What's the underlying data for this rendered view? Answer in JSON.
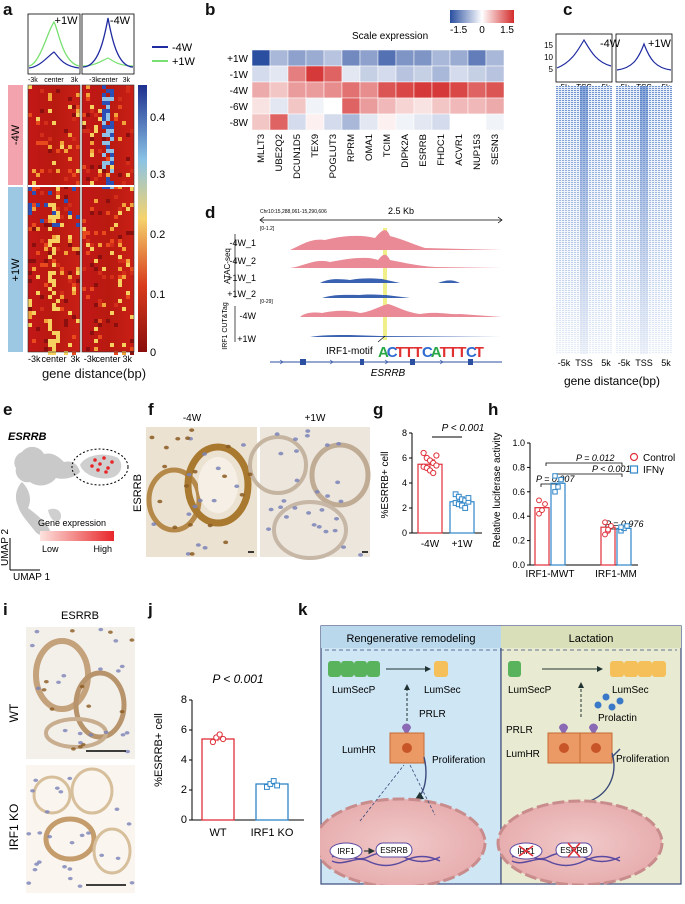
{
  "panels": {
    "a": {
      "label": "a",
      "top_titles": [
        "+1W",
        "-4W"
      ],
      "legend": [
        {
          "name": "-4W",
          "color": "#1f2aa0"
        },
        {
          "name": "+1W",
          "color": "#78e070"
        }
      ],
      "row_labels": [
        "-4W",
        "+1W"
      ],
      "colorbar_ticks": [
        "0.4",
        "0.3",
        "0.2",
        "0.1",
        "0"
      ],
      "x_ticks": [
        "-3k",
        "center",
        "3k"
      ],
      "xlabel": "gene distance(bp)"
    },
    "b": {
      "label": "b",
      "title": "Scale expression",
      "scale_ticks": [
        "-1.5",
        "0",
        "1.5"
      ],
      "rows": [
        "+1W",
        "-1W",
        "-4W",
        "-6W",
        "-8W"
      ],
      "genes": [
        "MLLT3",
        "UBE2Q2",
        "DCUN1D5",
        "TEX9",
        "POGLUT3",
        "RPRM",
        "OMA1",
        "TCIM",
        "DIPK2A",
        "ESRRB",
        "FHDC1",
        "ACVR1",
        "NUP153",
        "SESN3"
      ]
    },
    "c": {
      "label": "c",
      "titles": [
        "-4W",
        "+1W"
      ],
      "y_ticks": [
        "15",
        "10",
        "5"
      ],
      "x_ticks": [
        "-5k",
        "TSS",
        "5k"
      ],
      "xlabel": "gene distance(bp)"
    },
    "d": {
      "label": "d",
      "coords": "Chr10:15,288,061-15,290,606",
      "scale": "2.5 Kb",
      "range1": "[0-1.2]",
      "range2": "[0-29]",
      "group1": "ATAC-seq",
      "group2": "IRF1 CUT&Tag",
      "tracks": [
        "-4W_1",
        "-4W_2",
        "+1W_1",
        "+1W_2",
        "-4W",
        "+1W"
      ],
      "motif_label": "IRF1-motif",
      "motif": "ACTTTCATTTCT",
      "gene": "ESRRB"
    },
    "e": {
      "label": "e",
      "gene": "ESRRB",
      "legend_title": "Gene expression",
      "low": "Low",
      "high": "High",
      "axis_y": "UMAP 2",
      "axis_x": "UMAP 1"
    },
    "f": {
      "label": "f",
      "titles": [
        "-4W",
        "+1W"
      ],
      "side": "ESRRB"
    },
    "g": {
      "label": "g",
      "pvalue": "P < 0.001",
      "ylabel": "%ESRRB+ cell",
      "y_ticks": [
        "8",
        "6",
        "4",
        "2",
        "0"
      ],
      "categories": [
        "-4W",
        "+1W"
      ]
    },
    "h": {
      "label": "h",
      "ylabel": "Relative luciferase activity",
      "y_ticks": [
        "1.0",
        "0.8",
        "0.6",
        "0.4",
        "0.2",
        "0.0"
      ],
      "pvals": [
        "P = 0.012",
        "P < 0.001",
        "P = 0.007",
        "P = 0.976"
      ],
      "legend": [
        "Control",
        "IFNγ"
      ],
      "categories": [
        "IRF1-MWT",
        "IRF1-MM"
      ]
    },
    "i": {
      "label": "i",
      "title": "ESRRB",
      "rows": [
        "WT",
        "IRF1 KO"
      ]
    },
    "j": {
      "label": "j",
      "pvalue": "P < 0.001",
      "ylabel": "%ESRRB+ cell",
      "y_ticks": [
        "8",
        "6",
        "4",
        "2",
        "0"
      ],
      "categories": [
        "WT",
        "IRF1 KO"
      ]
    },
    "k": {
      "label": "k",
      "left_title": "Rengenerative remodeling",
      "right_title": "Lactation",
      "left_labels": {
        "lumsecp": "LumSecP",
        "lumsec": "LumSec",
        "prlr": "PRLR",
        "lumhr": "LumHR",
        "prolif": "Proliferation",
        "irf1": "IRF1",
        "esrrb": "ESRRB"
      },
      "right_labels": {
        "lumsecp": "LumSecP",
        "lumsec": "LumSec",
        "prlr": "PRLR",
        "lumhr": "LumHR",
        "prolif": "Proliferation",
        "prolactin": "Prolactin",
        "irf1": "IRF1",
        "esrrb": "ESRRB"
      }
    }
  },
  "chart_data": [
    {
      "type": "bar",
      "panel": "g",
      "categories": [
        "-4W",
        "+1W"
      ],
      "values": [
        5.5,
        2.5
      ],
      "errors": [
        0.35,
        0.2
      ],
      "points": [
        [
          6.4,
          6.0,
          5.8,
          5.6,
          5.4,
          5.3,
          5.2,
          5.0,
          4.8,
          6.2
        ],
        [
          3.1,
          2.9,
          2.7,
          2.6,
          2.5,
          2.4,
          2.3,
          2.2,
          2.0,
          2.8
        ]
      ],
      "colors": [
        "#e0303a",
        "#2f86c8"
      ],
      "ylabel": "%ESRRB+ cell",
      "ylim": [
        0,
        8
      ]
    },
    {
      "type": "bar",
      "panel": "h",
      "categories": [
        "IRF1-MWT",
        "IRF1-MM"
      ],
      "series": [
        {
          "name": "Control",
          "values": [
            0.47,
            0.31
          ],
          "points": [
            [
              0.42,
              0.45,
              0.5,
              0.53
            ],
            [
              0.25,
              0.28,
              0.32,
              0.35,
              0.29
            ]
          ],
          "color": "#e0303a"
        },
        {
          "name": "IFNγ",
          "values": [
            0.67,
            0.3
          ],
          "points": [
            [
              0.6,
              0.64,
              0.7,
              0.73
            ],
            [
              0.28,
              0.3,
              0.32,
              0.31
            ]
          ],
          "color": "#2f86c8"
        }
      ],
      "ylabel": "Relative luciferase activity",
      "ylim": [
        0,
        1.0
      ]
    },
    {
      "type": "bar",
      "panel": "j",
      "categories": [
        "WT",
        "IRF1 KO"
      ],
      "values": [
        5.4,
        2.4
      ],
      "errors": [
        0.15,
        0.15
      ],
      "points": [
        [
          5.2,
          5.5,
          5.7,
          5.4
        ],
        [
          2.2,
          2.4,
          2.6,
          2.3
        ]
      ],
      "colors": [
        "#e0303a",
        "#2f86c8"
      ],
      "ylabel": "%ESRRB+ cell",
      "ylim": [
        0,
        8
      ]
    }
  ]
}
